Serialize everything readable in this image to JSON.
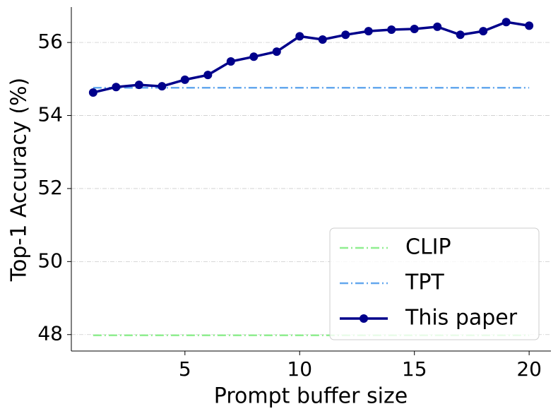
{
  "chart_data": {
    "type": "line",
    "xlabel": "Prompt buffer size",
    "ylabel": "Top-1 Accuracy (%)",
    "xlim": [
      0.05,
      20.95
    ],
    "ylim": [
      47.55,
      56.97
    ],
    "xticks": [
      5,
      10,
      15,
      20
    ],
    "yticks": [
      48,
      50,
      52,
      54,
      56
    ],
    "grid": "y",
    "legend": "lower right",
    "series": [
      {
        "name": "CLIP",
        "color": "#90ee90",
        "style": "dash-dot",
        "x": [
          1,
          20
        ],
        "values": [
          47.98,
          47.98
        ]
      },
      {
        "name": "TPT",
        "color": "#64a8ee",
        "style": "dash-dot",
        "x": [
          1,
          20
        ],
        "values": [
          54.76,
          54.76
        ]
      },
      {
        "name": "This paper",
        "color": "#00008b",
        "style": "solid",
        "marker": "circle",
        "x": [
          1,
          2,
          3,
          4,
          5,
          6,
          7,
          8,
          9,
          10,
          11,
          12,
          13,
          14,
          15,
          16,
          17,
          18,
          19,
          20
        ],
        "values": [
          54.63,
          54.78,
          54.84,
          54.8,
          54.98,
          55.11,
          55.48,
          55.61,
          55.75,
          56.17,
          56.08,
          56.21,
          56.31,
          56.35,
          56.37,
          56.43,
          56.21,
          56.31,
          56.56,
          56.46
        ]
      }
    ]
  }
}
